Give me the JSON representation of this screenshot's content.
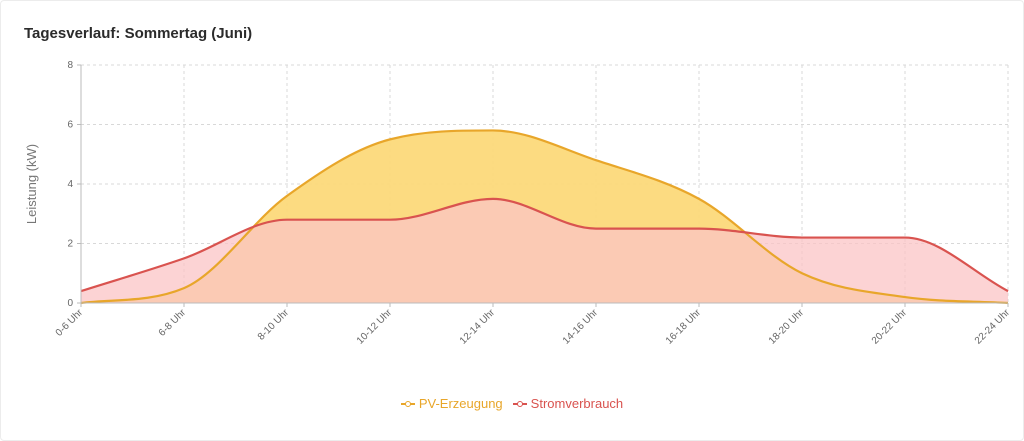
{
  "chart_data": {
    "type": "area",
    "title": "Tagesverlauf: Sommertag (Juni)",
    "xlabel": "",
    "ylabel": "Leistung (kW)",
    "ylim": [
      0,
      8
    ],
    "yticks": [
      0,
      2,
      4,
      6,
      8
    ],
    "grid": true,
    "legend_position": "bottom-center",
    "categories": [
      "0-6 Uhr",
      "6-8 Uhr",
      "8-10 Uhr",
      "10-12 Uhr",
      "12-14 Uhr",
      "14-16 Uhr",
      "16-18 Uhr",
      "18-20 Uhr",
      "20-22 Uhr",
      "22-24 Uhr"
    ],
    "series": [
      {
        "name": "PV-Erzeugung",
        "values": [
          0,
          0.5,
          3.6,
          5.5,
          5.8,
          4.8,
          3.5,
          1.0,
          0.2,
          0
        ],
        "color": "#e8a62a",
        "fill": "#fcd97a"
      },
      {
        "name": "Stromverbrauch",
        "values": [
          0.4,
          1.5,
          2.8,
          2.8,
          3.5,
          2.5,
          2.5,
          2.2,
          2.2,
          0.4
        ],
        "color": "#d9534f",
        "fill": "#fbc4c6"
      }
    ]
  }
}
